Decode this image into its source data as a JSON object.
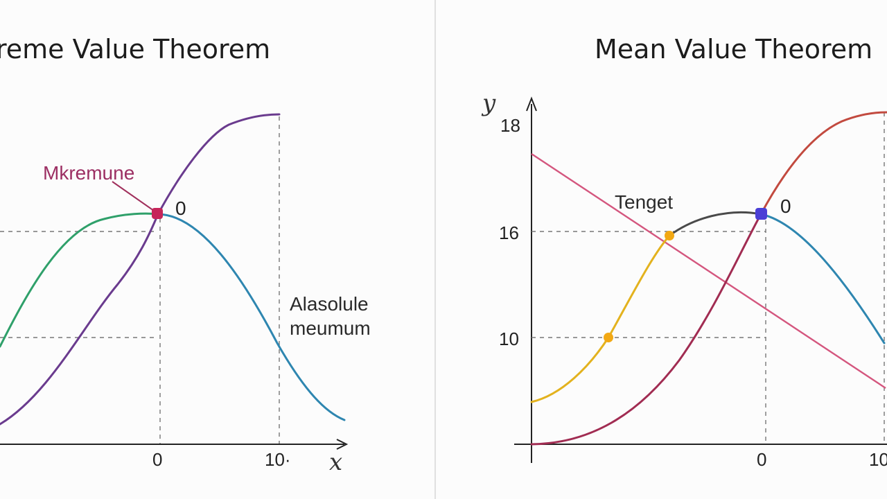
{
  "left_panel": {
    "title": "reme Value Theorem",
    "label_maximum": "Mkremune",
    "label_point_value": "0",
    "label_absolute_line1": "Alasolule",
    "label_absolute_line2": "meumum",
    "x_tick_zero": "0",
    "x_tick_ten": "10·",
    "x_axis_name": "x"
  },
  "right_panel": {
    "title": "Mean Value Theorem",
    "y_axis_name": "y",
    "y_tick_top": "18",
    "y_tick_mid": "16",
    "y_tick_low": "10",
    "label_tangent": "Tenget",
    "label_point_value": "0",
    "x_tick_zero": "0",
    "x_tick_ten": "10"
  },
  "colors": {
    "green_curve": "#2fa06a",
    "purple_curve": "#6a3b8e",
    "blue_curve": "#2e86b0",
    "red_curve": "#c24a3f",
    "crimson_curve": "#a12c52",
    "yellow_curve": "#e3b21e",
    "tangent_line": "#d4567e",
    "max_point": "#c6255a",
    "mvt_point": "#4a3fd6",
    "tangent_points": "#f2a814"
  }
}
